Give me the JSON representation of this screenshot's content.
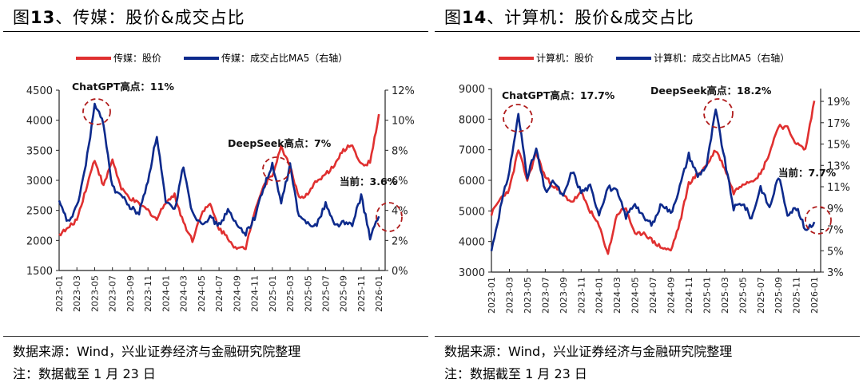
{
  "colors": {
    "price": "#E03030",
    "ratio": "#0D2A8C",
    "circle": "#B01C1C",
    "axis": "#222222"
  },
  "panels": [
    {
      "title_prefix": "图",
      "title_num": "13",
      "title_rest": "、传媒：股价&成交占比",
      "legend": [
        {
          "label": "传媒：股价",
          "color": "#E03030"
        },
        {
          "label": "传媒：成交占比MA5（右轴）",
          "color": "#0D2A8C"
        }
      ],
      "source": "数据来源：Wind，兴业证券经济与金融研究院整理",
      "note": "注：数据截至 1 月 23 日"
    },
    {
      "title_prefix": "图",
      "title_num": "14",
      "title_rest": "、计算机：股价&成交占比",
      "legend": [
        {
          "label": "计算机：股价",
          "color": "#E03030"
        },
        {
          "label": "计算机：成交占比MA5（右轴）",
          "color": "#0D2A8C"
        }
      ],
      "source": "数据来源：Wind，兴业证券经济与金融研究院整理",
      "note": "注：数据截至 1 月 23 日"
    }
  ],
  "chart_data": [
    {
      "type": "line",
      "title": "图13、传媒：股价&成交占比",
      "x_ticks": [
        "2023-01",
        "2023-03",
        "2023-05",
        "2023-07",
        "2023-09",
        "2023-11",
        "2024-01",
        "2024-03",
        "2024-05",
        "2024-07",
        "2024-09",
        "2024-11",
        "2025-01",
        "2025-03",
        "2025-05",
        "2025-07",
        "2025-09",
        "2025-11",
        "2026-01"
      ],
      "y_left": {
        "label": "股价",
        "ticks": [
          1500,
          2000,
          2500,
          3000,
          3500,
          4000,
          4500
        ],
        "range": [
          1500,
          4500
        ]
      },
      "y_right": {
        "label": "成交占比MA5",
        "ticks": [
          "0%",
          "2%",
          "4%",
          "6%",
          "8%",
          "10%",
          "12%"
        ],
        "range": [
          0,
          12
        ]
      },
      "annotations": [
        {
          "text": "ChatGPT高点：11%",
          "x": "2023-05",
          "value": 11
        },
        {
          "text": "DeepSeek高点：7%",
          "x": "2025-02",
          "value": 7
        },
        {
          "text": "当前：3.6%",
          "x": "2026-01",
          "value": 3.6
        }
      ],
      "series": [
        {
          "name": "传媒：股价",
          "axis": "left",
          "x": [
            "2023-01",
            "2023-02",
            "2023-03",
            "2023-04",
            "2023-05",
            "2023-06",
            "2023-07",
            "2023-08",
            "2023-09",
            "2023-10",
            "2023-11",
            "2023-12",
            "2024-01",
            "2024-02",
            "2024-03",
            "2024-04",
            "2024-05",
            "2024-06",
            "2024-07",
            "2024-08",
            "2024-09",
            "2024-10",
            "2024-11",
            "2024-12",
            "2025-01",
            "2025-02",
            "2025-03",
            "2025-04",
            "2025-05",
            "2025-06",
            "2025-07",
            "2025-08",
            "2025-09",
            "2025-10",
            "2025-11",
            "2025-12",
            "2026-01"
          ],
          "values": [
            2100,
            2200,
            2350,
            2850,
            3350,
            2900,
            3350,
            2850,
            2700,
            2600,
            2500,
            2350,
            2650,
            2750,
            2300,
            2000,
            2450,
            2600,
            2200,
            2050,
            1850,
            1880,
            2500,
            2900,
            3100,
            3550,
            3250,
            2700,
            2750,
            3000,
            3100,
            3250,
            3500,
            3600,
            3250,
            3300,
            4100
          ]
        },
        {
          "name": "传媒：成交占比MA5",
          "axis": "right",
          "x": [
            "2023-01",
            "2023-02",
            "2023-03",
            "2023-04",
            "2023-05",
            "2023-06",
            "2023-07",
            "2023-08",
            "2023-09",
            "2023-10",
            "2023-11",
            "2023-12",
            "2024-01",
            "2024-02",
            "2024-03",
            "2024-04",
            "2024-05",
            "2024-06",
            "2024-07",
            "2024-08",
            "2024-09",
            "2024-10",
            "2024-11",
            "2024-12",
            "2025-01",
            "2025-02",
            "2025-03",
            "2025-04",
            "2025-05",
            "2025-06",
            "2025-07",
            "2025-08",
            "2025-09",
            "2025-10",
            "2025-11",
            "2025-12",
            "2026-01"
          ],
          "values": [
            4.5,
            3.2,
            4.2,
            7.0,
            11.0,
            9.8,
            5.5,
            5.0,
            4.2,
            3.8,
            6.0,
            9.0,
            4.5,
            4.0,
            7.0,
            3.8,
            3.2,
            3.5,
            3.0,
            4.0,
            3.0,
            2.5,
            3.5,
            5.5,
            7.0,
            4.5,
            7.0,
            3.5,
            3.2,
            3.0,
            4.5,
            3.0,
            3.2,
            3.0,
            5.0,
            2.2,
            3.6
          ]
        }
      ]
    },
    {
      "type": "line",
      "title": "图14、计算机：股价&成交占比",
      "x_ticks": [
        "2023-01",
        "2023-03",
        "2023-05",
        "2023-07",
        "2023-09",
        "2023-11",
        "2024-01",
        "2024-03",
        "2024-05",
        "2024-07",
        "2024-09",
        "2024-11",
        "2025-01",
        "2025-03",
        "2025-05",
        "2025-07",
        "2025-09",
        "2025-11",
        "2026-01"
      ],
      "y_left": {
        "label": "股价",
        "ticks": [
          3000,
          4000,
          5000,
          6000,
          7000,
          8000,
          9000
        ],
        "range": [
          3000,
          9000
        ]
      },
      "y_right": {
        "label": "成交占比MA5",
        "ticks": [
          "3%",
          "5%",
          "7%",
          "9%",
          "11%",
          "13%",
          "15%",
          "17%",
          "19%"
        ],
        "range": [
          3,
          20.2
        ]
      },
      "annotations": [
        {
          "text": "ChatGPT高点：17.7%",
          "x": "2023-04",
          "value": 17.7
        },
        {
          "text": "DeepSeek高点：18.2%",
          "x": "2025-02",
          "value": 18.2
        },
        {
          "text": "当前：7.7%",
          "x": "2026-01",
          "value": 7.7
        }
      ],
      "series": [
        {
          "name": "计算机：股价",
          "axis": "left",
          "x": [
            "2023-01",
            "2023-02",
            "2023-03",
            "2023-04",
            "2023-05",
            "2023-06",
            "2023-07",
            "2023-08",
            "2023-09",
            "2023-10",
            "2023-11",
            "2023-12",
            "2024-01",
            "2024-02",
            "2024-03",
            "2024-04",
            "2024-05",
            "2024-06",
            "2024-07",
            "2024-08",
            "2024-09",
            "2024-10",
            "2024-11",
            "2024-12",
            "2025-01",
            "2025-02",
            "2025-03",
            "2025-04",
            "2025-05",
            "2025-06",
            "2025-07",
            "2025-08",
            "2025-09",
            "2025-10",
            "2025-11",
            "2025-12",
            "2026-01"
          ],
          "values": [
            4900,
            5400,
            5700,
            7000,
            6000,
            6900,
            6100,
            5800,
            5500,
            5300,
            5600,
            5000,
            4500,
            3600,
            4900,
            5100,
            4200,
            4300,
            4000,
            3800,
            3700,
            4600,
            5900,
            6200,
            6500,
            7000,
            6400,
            5600,
            5900,
            6000,
            6200,
            6900,
            7800,
            7700,
            7200,
            7000,
            8600
          ]
        },
        {
          "name": "计算机：成交占比MA5",
          "axis": "right",
          "x": [
            "2023-01",
            "2023-02",
            "2023-03",
            "2023-04",
            "2023-05",
            "2023-06",
            "2023-07",
            "2023-08",
            "2023-09",
            "2023-10",
            "2023-11",
            "2023-12",
            "2024-01",
            "2024-02",
            "2024-03",
            "2024-04",
            "2024-05",
            "2024-06",
            "2024-07",
            "2024-08",
            "2024-09",
            "2024-10",
            "2024-11",
            "2024-12",
            "2025-01",
            "2025-02",
            "2025-03",
            "2025-04",
            "2025-05",
            "2025-06",
            "2025-07",
            "2025-08",
            "2025-09",
            "2025-10",
            "2025-11",
            "2025-12",
            "2026-01"
          ],
          "values": [
            5.0,
            9.0,
            12.5,
            17.7,
            12.0,
            14.5,
            10.5,
            11.5,
            10.0,
            12.5,
            10.5,
            11.0,
            8.5,
            11.0,
            10.5,
            8.2,
            9.5,
            8.0,
            7.5,
            9.5,
            8.5,
            11.0,
            14.0,
            12.0,
            13.0,
            18.2,
            13.5,
            9.0,
            9.5,
            8.0,
            11.0,
            9.0,
            12.0,
            8.5,
            9.0,
            7.0,
            7.7
          ]
        }
      ]
    }
  ]
}
